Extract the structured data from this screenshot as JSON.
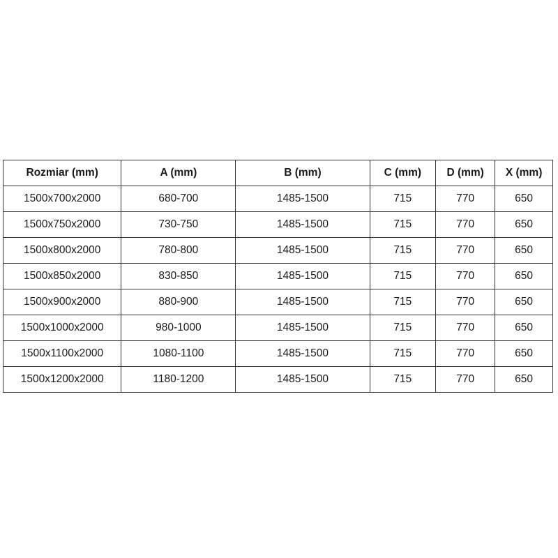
{
  "table": {
    "headers": [
      "Rozmiar (mm)",
      "A (mm)",
      "B (mm)",
      "C (mm)",
      "D (mm)",
      "X (mm)"
    ],
    "header_keys": [
      "rozmiar",
      "a",
      "b",
      "c",
      "d",
      "x"
    ],
    "rows": [
      [
        "1500x700x2000",
        "680-700",
        "1485-1500",
        "715",
        "770",
        "650"
      ],
      [
        "1500x750x2000",
        "730-750",
        "1485-1500",
        "715",
        "770",
        "650"
      ],
      [
        "1500x800x2000",
        "780-800",
        "1485-1500",
        "715",
        "770",
        "650"
      ],
      [
        "1500x850x2000",
        "830-850",
        "1485-1500",
        "715",
        "770",
        "650"
      ],
      [
        "1500x900x2000",
        "880-900",
        "1485-1500",
        "715",
        "770",
        "650"
      ],
      [
        "1500x1000x2000",
        "980-1000",
        "1485-1500",
        "715",
        "770",
        "650"
      ],
      [
        "1500x1100x2000",
        "1080-1100",
        "1485-1500",
        "715",
        "770",
        "650"
      ],
      [
        "1500x1200x2000",
        "1180-1200",
        "1485-1500",
        "715",
        "770",
        "650"
      ]
    ]
  },
  "colors": {
    "border": "#333333",
    "text": "#1a1a1a",
    "background": "#ffffff"
  }
}
